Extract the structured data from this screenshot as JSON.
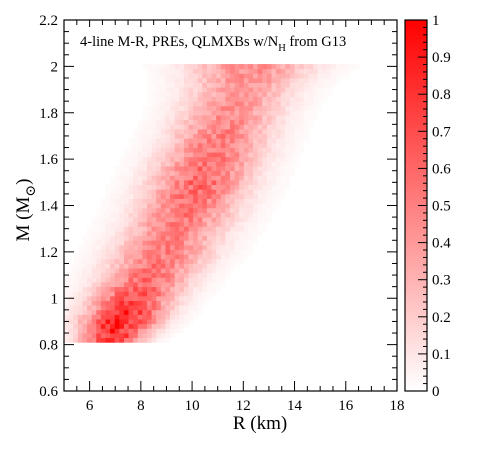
{
  "chart_data": {
    "type": "heatmap",
    "annotation": {
      "prefix": "4-line M-R, PREs, QLMXBs w/N",
      "subscript": "H",
      "suffix": " from G13"
    },
    "xlabel": "R (km)",
    "ylabel": {
      "main": "M (M",
      "subscript": "⊙",
      "close": ")"
    },
    "xlim": [
      5,
      18
    ],
    "ylim": [
      0.6,
      2.2
    ],
    "x_ticks": [
      "6",
      "8",
      "10",
      "12",
      "14",
      "16",
      "18"
    ],
    "y_ticks": [
      "0.6",
      "0.8",
      "1",
      "1.2",
      "1.4",
      "1.6",
      "1.8",
      "2",
      "2.2"
    ],
    "colorbar": {
      "range": [
        0,
        1
      ],
      "ticks": [
        "0",
        "0.1",
        "0.2",
        "0.3",
        "0.4",
        "0.5",
        "0.6",
        "0.7",
        "0.8",
        "0.9",
        "1"
      ],
      "color_low": "#ffffff",
      "color_high": "#ff0000"
    },
    "density_ridge": {
      "mass": [
        0.81,
        0.9,
        1.0,
        1.1,
        1.2,
        1.3,
        1.4,
        1.5,
        1.6,
        1.7,
        1.8,
        1.9,
        2.0
      ],
      "radius_center": [
        6.8,
        7.2,
        7.7,
        8.3,
        8.9,
        9.4,
        9.9,
        10.3,
        10.7,
        11.1,
        11.5,
        11.9,
        12.3
      ],
      "radius_spread": [
        0.8,
        1.0,
        1.1,
        1.2,
        1.3,
        1.3,
        1.3,
        1.3,
        1.3,
        1.3,
        1.3,
        1.4,
        1.6
      ],
      "peak_density": [
        0.75,
        0.9,
        0.7,
        0.55,
        0.5,
        0.5,
        0.55,
        0.6,
        0.55,
        0.5,
        0.45,
        0.4,
        0.45
      ]
    },
    "grid": false
  }
}
